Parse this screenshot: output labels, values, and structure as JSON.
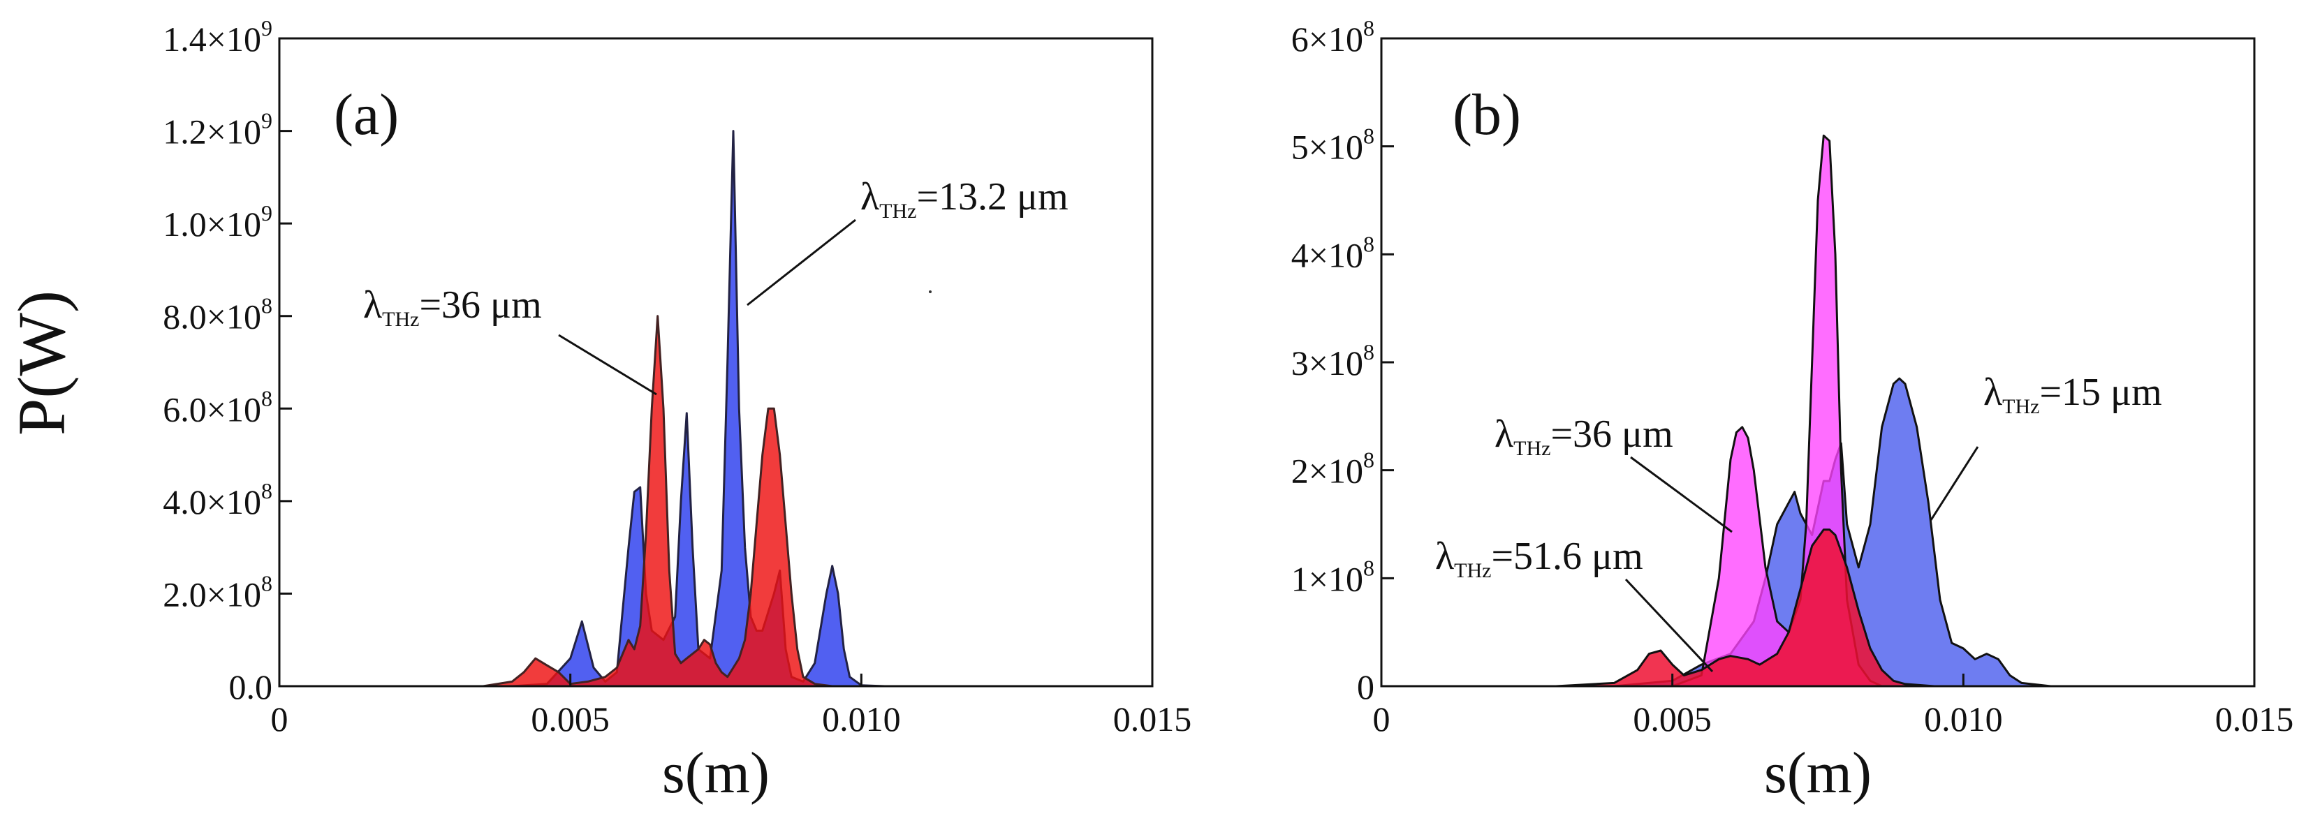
{
  "figure": {
    "ylabel": "P(W)"
  },
  "chart_data": [
    {
      "panel": "a",
      "type": "area",
      "panel_label": "(a)",
      "xlabel": "s(m)",
      "ylabel": "P(W)",
      "xlim": [
        0,
        0.015
      ],
      "ylim": [
        0,
        1400000000
      ],
      "x_ticks": [
        {
          "v": 0,
          "label": "0"
        },
        {
          "v": 0.005,
          "label": "0.005"
        },
        {
          "v": 0.01,
          "label": "0.010"
        },
        {
          "v": 0.015,
          "label": "0.015"
        }
      ],
      "y_ticks": [
        {
          "v": 0,
          "mant": "0.0",
          "exp": ""
        },
        {
          "v": 200000000,
          "mant": "2.0",
          "exp": "8"
        },
        {
          "v": 400000000,
          "mant": "4.0",
          "exp": "8"
        },
        {
          "v": 600000000,
          "mant": "6.0",
          "exp": "8"
        },
        {
          "v": 800000000,
          "mant": "8.0",
          "exp": "8"
        },
        {
          "v": 1000000000,
          "mant": "1.0",
          "exp": "9"
        },
        {
          "v": 1200000000,
          "mant": "1.2",
          "exp": "9"
        },
        {
          "v": 1400000000,
          "mant": "1.4",
          "exp": "9"
        }
      ],
      "series": [
        {
          "name": "λTHz=13.2 μm",
          "fill": "#3344ee",
          "stroke": "#222244",
          "opacity": 0.85,
          "x": [
            0.003,
            0.004,
            0.0046,
            0.005,
            0.0052,
            0.0054,
            0.0056,
            0.0058,
            0.006,
            0.0061,
            0.0062,
            0.0063,
            0.0064,
            0.0066,
            0.0068,
            0.0069,
            0.007,
            0.0071,
            0.0072,
            0.0074,
            0.0076,
            0.0077,
            0.0078,
            0.0079,
            0.008,
            0.0081,
            0.0082,
            0.0083,
            0.0084,
            0.0085,
            0.0086,
            0.0087,
            0.0088,
            0.009,
            0.0092,
            0.0094,
            0.0095,
            0.0096,
            0.0097,
            0.0098,
            0.01,
            0.0104
          ],
          "y": [
            0,
            0,
            5000000,
            60000000,
            140000000,
            40000000,
            10000000,
            30000000,
            300000000,
            420000000,
            430000000,
            200000000,
            120000000,
            100000000,
            150000000,
            400000000,
            590000000,
            300000000,
            80000000,
            60000000,
            250000000,
            700000000,
            1200000000,
            600000000,
            300000000,
            150000000,
            120000000,
            120000000,
            160000000,
            200000000,
            250000000,
            80000000,
            20000000,
            10000000,
            50000000,
            200000000,
            260000000,
            200000000,
            80000000,
            20000000,
            2000000,
            0
          ]
        },
        {
          "name": "λTHz=36 μm",
          "fill": "#ee1111",
          "stroke": "#442222",
          "opacity": 0.82,
          "x": [
            0.0035,
            0.004,
            0.0042,
            0.0044,
            0.0046,
            0.0048,
            0.005,
            0.0053,
            0.0056,
            0.0058,
            0.006,
            0.0061,
            0.0062,
            0.0063,
            0.0064,
            0.0065,
            0.0066,
            0.0067,
            0.0068,
            0.0069,
            0.007,
            0.0071,
            0.0072,
            0.0073,
            0.0074,
            0.0075,
            0.0076,
            0.0077,
            0.0078,
            0.0079,
            0.008,
            0.0081,
            0.0082,
            0.0083,
            0.0084,
            0.0085,
            0.0086,
            0.0087,
            0.0088,
            0.0089,
            0.009,
            0.0092,
            0.0095
          ],
          "y": [
            0,
            10000000,
            30000000,
            60000000,
            45000000,
            30000000,
            5000000,
            10000000,
            20000000,
            40000000,
            100000000,
            80000000,
            130000000,
            330000000,
            600000000,
            800000000,
            600000000,
            250000000,
            70000000,
            50000000,
            60000000,
            70000000,
            80000000,
            100000000,
            90000000,
            50000000,
            30000000,
            20000000,
            40000000,
            60000000,
            100000000,
            200000000,
            350000000,
            500000000,
            600000000,
            600000000,
            500000000,
            350000000,
            200000000,
            80000000,
            20000000,
            5000000,
            0
          ]
        }
      ],
      "annotations": [
        {
          "main": "λ",
          "sub": "THz",
          "rest": "=13.2 μm"
        },
        {
          "main": "λ",
          "sub": "THz",
          "rest": "=36 μm"
        }
      ]
    },
    {
      "panel": "b",
      "type": "area",
      "panel_label": "(b)",
      "xlabel": "s(m)",
      "ylabel": "",
      "xlim": [
        0,
        0.015
      ],
      "ylim": [
        0,
        600000000
      ],
      "x_ticks": [
        {
          "v": 0,
          "label": "0"
        },
        {
          "v": 0.005,
          "label": "0.005"
        },
        {
          "v": 0.01,
          "label": "0.010"
        },
        {
          "v": 0.015,
          "label": "0.015"
        }
      ],
      "y_ticks": [
        {
          "v": 0,
          "mant": "0",
          "exp": ""
        },
        {
          "v": 100000000,
          "mant": "1",
          "exp": "8"
        },
        {
          "v": 200000000,
          "mant": "2",
          "exp": "8"
        },
        {
          "v": 300000000,
          "mant": "3",
          "exp": "8"
        },
        {
          "v": 400000000,
          "mant": "4",
          "exp": "8"
        },
        {
          "v": 500000000,
          "mant": "5",
          "exp": "8"
        },
        {
          "v": 600000000,
          "mant": "6",
          "exp": "8"
        }
      ],
      "series": [
        {
          "name": "λTHz=15 μm",
          "fill": "#5566ee",
          "stroke": "#111111",
          "opacity": 0.85,
          "x": [
            0.004,
            0.005,
            0.0055,
            0.006,
            0.0064,
            0.0066,
            0.0068,
            0.007,
            0.0071,
            0.0072,
            0.0074,
            0.0076,
            0.0077,
            0.0078,
            0.0079,
            0.008,
            0.0082,
            0.0084,
            0.0086,
            0.0088,
            0.0089,
            0.009,
            0.0092,
            0.0094,
            0.0096,
            0.0098,
            0.01,
            0.0102,
            0.0104,
            0.0106,
            0.0108,
            0.011,
            0.0115
          ],
          "y": [
            0,
            5000000,
            20000000,
            30000000,
            60000000,
            100000000,
            150000000,
            170000000,
            180000000,
            160000000,
            140000000,
            190000000,
            190000000,
            210000000,
            225000000,
            150000000,
            110000000,
            150000000,
            240000000,
            280000000,
            285000000,
            280000000,
            240000000,
            170000000,
            80000000,
            40000000,
            35000000,
            25000000,
            30000000,
            25000000,
            10000000,
            3000000,
            0
          ]
        },
        {
          "name": "λTHz=36 μm",
          "fill": "#ff44ff",
          "stroke": "#111111",
          "opacity": 0.78,
          "x": [
            0.005,
            0.0055,
            0.0058,
            0.006,
            0.0061,
            0.0062,
            0.0063,
            0.0064,
            0.0066,
            0.0068,
            0.007,
            0.0072,
            0.0073,
            0.0074,
            0.0075,
            0.0076,
            0.0077,
            0.0078,
            0.0079,
            0.008,
            0.0082,
            0.0084,
            0.0086
          ],
          "y": [
            0,
            10000000,
            100000000,
            210000000,
            235000000,
            240000000,
            230000000,
            200000000,
            110000000,
            60000000,
            50000000,
            80000000,
            150000000,
            300000000,
            450000000,
            510000000,
            505000000,
            400000000,
            200000000,
            80000000,
            20000000,
            5000000,
            0
          ]
        },
        {
          "name": "λTHz=51.6 μm",
          "fill": "#ee1133",
          "stroke": "#111111",
          "opacity": 0.85,
          "x": [
            0.003,
            0.004,
            0.0044,
            0.0046,
            0.0048,
            0.005,
            0.0052,
            0.0055,
            0.0058,
            0.006,
            0.0063,
            0.0065,
            0.0068,
            0.007,
            0.0072,
            0.0074,
            0.0076,
            0.0077,
            0.0078,
            0.008,
            0.0082,
            0.0084,
            0.0086,
            0.0088,
            0.009,
            0.0095
          ],
          "y": [
            0,
            3000000,
            15000000,
            30000000,
            33000000,
            20000000,
            10000000,
            15000000,
            25000000,
            28000000,
            25000000,
            20000000,
            30000000,
            50000000,
            90000000,
            130000000,
            145000000,
            145000000,
            140000000,
            110000000,
            70000000,
            35000000,
            15000000,
            5000000,
            2000000,
            0
          ]
        }
      ],
      "annotations": [
        {
          "main": "λ",
          "sub": "THz",
          "rest": "=15 μm"
        },
        {
          "main": "λ",
          "sub": "THz",
          "rest": "=36 μm"
        },
        {
          "main": "λ",
          "sub": "THz",
          "rest": "=51.6 μm"
        }
      ]
    }
  ]
}
